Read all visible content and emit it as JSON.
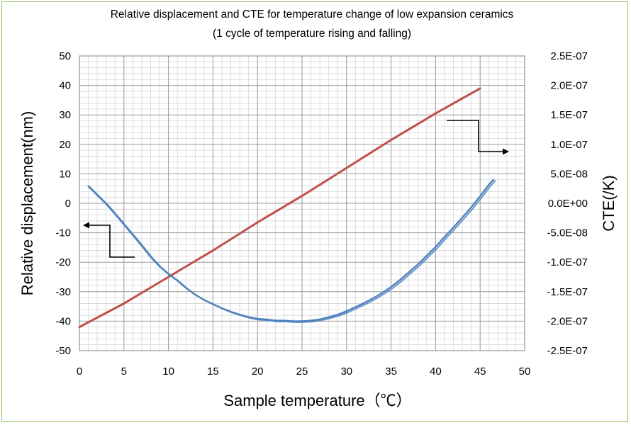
{
  "chart_data": {
    "type": "line",
    "title": "Relative displacement and CTE for temperature change of low expansion ceramics",
    "subtitle": "(1 cycle of temperature rising and falling)",
    "xlabel": "Sample temperature（℃）",
    "ylabel": "Relative displacement(nm)",
    "y2label": "CTE(/K)",
    "xlim": [
      0,
      50
    ],
    "ylim": [
      -50,
      50
    ],
    "y2lim": [
      -2.5e-07,
      2.5e-07
    ],
    "grid": true,
    "x_ticks": [
      "0",
      "5",
      "10",
      "15",
      "20",
      "25",
      "30",
      "35",
      "40",
      "45",
      "50"
    ],
    "y_ticks": [
      "50",
      "40",
      "30",
      "20",
      "10",
      "0",
      "-10",
      "-20",
      "-30",
      "-40",
      "-50"
    ],
    "y2_ticks": [
      "2.5E-07",
      "2.0E-07",
      "1.5E-07",
      "1.0E-07",
      "5.0E-08",
      "0.0E+00",
      "-5.0E-08",
      "-1.0E-07",
      "-1.5E-07",
      "-2.0E-07",
      "-2.5E-07"
    ],
    "series": [
      {
        "axis": "left",
        "color": "#c0504d",
        "x": [
          0,
          5,
          10,
          15,
          20,
          25,
          30,
          35,
          40,
          45
        ],
        "y": [
          -42,
          -34,
          -25,
          -16,
          -6.5,
          2.5,
          12,
          21.5,
          30.5,
          39
        ]
      },
      {
        "axis": "right",
        "color": "#4f81bd",
        "x": [
          1,
          2,
          3,
          4,
          5,
          6,
          7,
          8,
          9,
          10,
          11,
          12,
          13,
          14,
          15,
          16,
          17,
          18,
          19,
          20,
          21,
          22,
          23,
          24,
          25,
          26,
          27,
          28,
          29,
          30,
          31,
          32,
          33,
          34,
          35,
          36,
          37,
          38,
          39,
          40,
          41,
          42,
          43,
          44,
          45,
          46,
          46.5
        ],
        "y": [
          2.9e-08,
          1.4e-08,
          -1e-09,
          -1.8e-08,
          -3.6e-08,
          -5.4e-08,
          -7.2e-08,
          -9.1e-08,
          -1.07e-07,
          -1.2e-07,
          -1.31e-07,
          -1.44e-07,
          -1.55e-07,
          -1.64e-07,
          -1.71e-07,
          -1.78e-07,
          -1.84e-07,
          -1.89e-07,
          -1.93e-07,
          -1.96e-07,
          -1.97e-07,
          -1.99e-07,
          -1.99e-07,
          -2e-07,
          -2e-07,
          -1.99e-07,
          -1.97e-07,
          -1.93e-07,
          -1.89e-07,
          -1.83e-07,
          -1.76e-07,
          -1.69e-07,
          -1.61e-07,
          -1.52e-07,
          -1.42e-07,
          -1.3e-07,
          -1.17e-07,
          -1.04e-07,
          -8.9e-08,
          -7.4e-08,
          -5.7e-08,
          -4.1e-08,
          -2.4e-08,
          -7e-09,
          1.2e-08,
          3.2e-08,
          4e-08
        ]
      }
    ]
  }
}
